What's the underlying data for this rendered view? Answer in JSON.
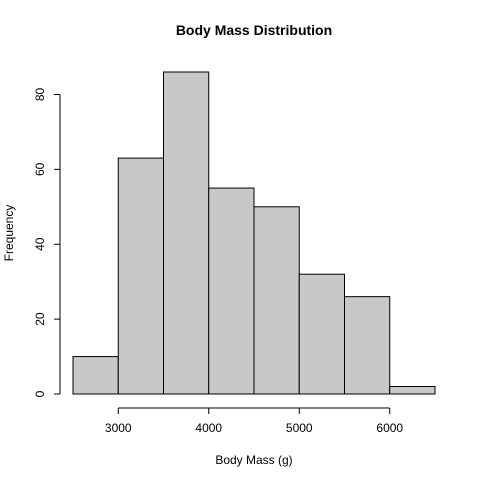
{
  "chart_data": {
    "type": "bar",
    "title": "Body Mass Distribution",
    "xlabel": "Body Mass (g)",
    "ylabel": "Frequency",
    "bins": [
      {
        "start": 2500,
        "end": 3000,
        "count": 10
      },
      {
        "start": 3000,
        "end": 3500,
        "count": 63
      },
      {
        "start": 3500,
        "end": 4000,
        "count": 86
      },
      {
        "start": 4000,
        "end": 4500,
        "count": 55
      },
      {
        "start": 4500,
        "end": 5000,
        "count": 50
      },
      {
        "start": 5000,
        "end": 5500,
        "count": 32
      },
      {
        "start": 5500,
        "end": 6000,
        "count": 26
      },
      {
        "start": 6000,
        "end": 6500,
        "count": 2
      }
    ],
    "xlim": [
      2500,
      6500
    ],
    "ylim": [
      0,
      86
    ],
    "x_ticks": [
      {
        "value": 3000,
        "label": "3000"
      },
      {
        "value": 4000,
        "label": "4000"
      },
      {
        "value": 5000,
        "label": "5000"
      },
      {
        "value": 6000,
        "label": "6000"
      }
    ],
    "y_ticks": [
      {
        "value": 0,
        "label": "0"
      },
      {
        "value": 20,
        "label": "20"
      },
      {
        "value": 40,
        "label": "40"
      },
      {
        "value": 60,
        "label": "60"
      },
      {
        "value": 80,
        "label": "80"
      }
    ],
    "bar_fill": "#c8c8c8",
    "bar_stroke": "#000000",
    "grid": false,
    "legend": "none"
  }
}
